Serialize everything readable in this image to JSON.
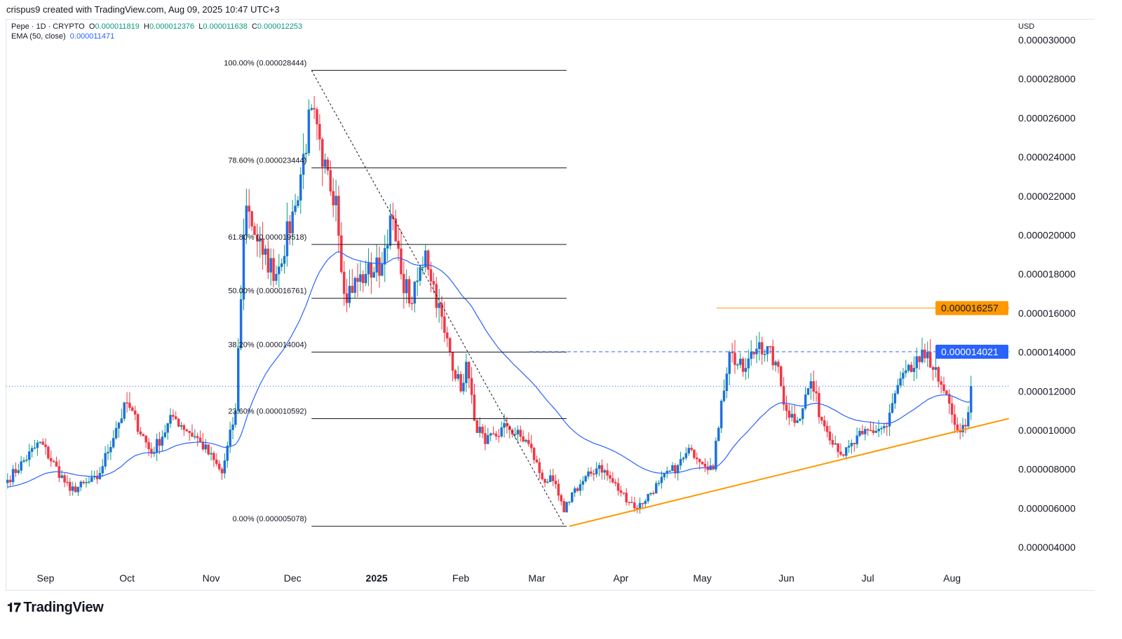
{
  "credit": "crispus9 created with TradingView.com, Aug 09, 2025 10:47 UTC+3",
  "legend": {
    "symbol": "Pepe · 1D · CRYPTO",
    "o_label": "O",
    "o": "0.000011819",
    "h_label": "H",
    "h": "0.000012376",
    "l_label": "L",
    "l": "0.000011638",
    "c_label": "C",
    "c": "0.000012253",
    "ema_label": "EMA (50, close)",
    "ema": "0.000011471"
  },
  "currency": "USD",
  "logo": "TradingView",
  "chart_data": {
    "type": "candlestick",
    "title": "Pepe · 1D · CRYPTO",
    "price_unit": "1e-6 USD",
    "ylim": [
      3.0,
      30.5
    ],
    "y_ticks": [
      "0.000004000",
      "0.000006000",
      "0.000008000",
      "0.000010000",
      "0.000012000",
      "0.000014000",
      "0.000016000",
      "0.000018000",
      "0.000020000",
      "0.000022000",
      "0.000024000",
      "0.000026000",
      "0.000028000",
      "0.000030000"
    ],
    "y_tick_values": [
      4,
      6,
      8,
      10,
      12,
      14,
      16,
      18,
      20,
      22,
      24,
      26,
      28,
      30
    ],
    "x_ticks": [
      {
        "label": "Sep",
        "day": 0
      },
      {
        "label": "Oct",
        "day": 30
      },
      {
        "label": "Nov",
        "day": 61
      },
      {
        "label": "Dec",
        "day": 91
      },
      {
        "label": "2025",
        "day": 122,
        "bold": true
      },
      {
        "label": "Feb",
        "day": 153
      },
      {
        "label": "Mar",
        "day": 181
      },
      {
        "label": "Apr",
        "day": 212
      },
      {
        "label": "May",
        "day": 242
      },
      {
        "label": "Jun",
        "day": 273
      },
      {
        "label": "Jul",
        "day": 303
      },
      {
        "label": "Aug",
        "day": 334
      }
    ],
    "close_keypoints": [
      [
        -14,
        7.45
      ],
      [
        -2,
        9.4
      ],
      [
        9,
        6.9
      ],
      [
        19,
        7.5
      ],
      [
        26,
        10.1
      ],
      [
        30,
        11.4
      ],
      [
        39,
        8.8
      ],
      [
        47,
        10.7
      ],
      [
        57,
        9.4
      ],
      [
        65,
        7.8
      ],
      [
        70,
        11
      ],
      [
        73,
        20
      ],
      [
        74,
        21.5
      ],
      [
        80,
        19
      ],
      [
        85,
        18
      ],
      [
        92,
        21.5
      ],
      [
        98,
        26.5
      ],
      [
        102,
        23.5
      ],
      [
        107,
        22
      ],
      [
        110,
        17
      ],
      [
        118,
        18
      ],
      [
        124,
        18.5
      ],
      [
        127,
        21
      ],
      [
        131,
        18
      ],
      [
        135,
        16.5
      ],
      [
        140,
        19.2
      ],
      [
        147,
        15
      ],
      [
        153,
        12
      ],
      [
        155,
        13.5
      ],
      [
        158,
        10.5
      ],
      [
        162,
        9.3
      ],
      [
        170,
        10.2
      ],
      [
        178,
        9.3
      ],
      [
        183,
        7.5
      ],
      [
        187,
        7.4
      ],
      [
        191,
        5.8
      ],
      [
        194,
        6.8
      ],
      [
        204,
        8.2
      ],
      [
        212,
        6.8
      ],
      [
        218,
        6.0
      ],
      [
        226,
        7.3
      ],
      [
        233,
        8.2
      ],
      [
        238,
        9.0
      ],
      [
        246,
        8.0
      ],
      [
        249,
        11.5
      ],
      [
        252,
        14.0
      ],
      [
        257,
        13.0
      ],
      [
        263,
        14.5
      ],
      [
        269,
        13.5
      ],
      [
        273,
        11.0
      ],
      [
        277,
        10.5
      ],
      [
        282,
        12.5
      ],
      [
        286,
        10.5
      ],
      [
        294,
        8.7
      ],
      [
        301,
        9.8
      ],
      [
        310,
        10.2
      ],
      [
        314,
        12.3
      ],
      [
        322,
        13.5
      ],
      [
        325,
        14.0
      ],
      [
        329,
        12.5
      ],
      [
        334,
        10.8
      ],
      [
        337,
        9.9
      ],
      [
        339,
        10.2
      ],
      [
        341,
        12.25
      ]
    ],
    "ema_period": 50,
    "fib_levels": [
      {
        "label": "100.00% (0.000028444)",
        "value": 28.444
      },
      {
        "label": "78.60% (0.000023444)",
        "value": 23.444
      },
      {
        "label": "61.80% (0.000019518)",
        "value": 19.518
      },
      {
        "label": "50.00% (0.000016761)",
        "value": 16.761
      },
      {
        "label": "38.20% (0.000014004)",
        "value": 14.004
      },
      {
        "label": "23.60% (0.000010592)",
        "value": 10.592
      },
      {
        "label": "0.00% (0.000005078)",
        "value": 5.078
      }
    ],
    "fib_range_days": [
      98,
      192
    ],
    "trendline": {
      "from": [
        193,
        5.078
      ],
      "to": [
        355,
        10.6
      ]
    },
    "resistance": {
      "label": "0.000016257",
      "value": 16.257,
      "color": "#ff9800"
    },
    "support_level": {
      "label": "0.000014021",
      "value": 14.021,
      "color": "#2962ff"
    },
    "last_price": 12.253,
    "colors": {
      "up": "#089981",
      "down": "#f23645",
      "ema": "#2962ff",
      "trend": "#ff9800"
    }
  }
}
